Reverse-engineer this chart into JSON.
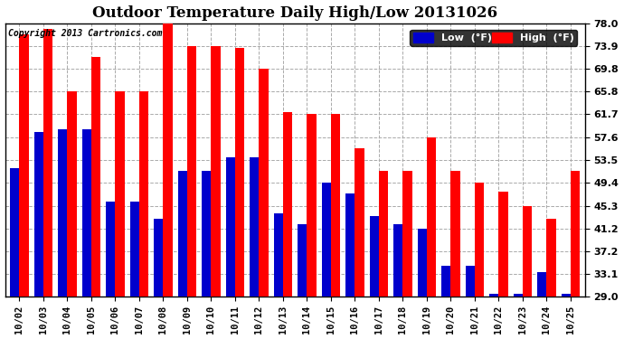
{
  "title": "Outdoor Temperature Daily High/Low 20131026",
  "copyright": "Copyright 2013 Cartronics.com",
  "categories": [
    "10/02",
    "10/03",
    "10/04",
    "10/05",
    "10/06",
    "10/07",
    "10/08",
    "10/09",
    "10/10",
    "10/11",
    "10/12",
    "10/13",
    "10/14",
    "10/15",
    "10/16",
    "10/17",
    "10/18",
    "10/19",
    "10/20",
    "10/21",
    "10/22",
    "10/23",
    "10/24",
    "10/25"
  ],
  "high": [
    76.0,
    77.0,
    65.8,
    72.0,
    65.8,
    65.8,
    78.0,
    73.9,
    73.9,
    73.5,
    69.8,
    62.0,
    61.7,
    61.7,
    55.6,
    51.5,
    51.5,
    57.6,
    51.5,
    49.4,
    47.8,
    45.3,
    43.0,
    51.5
  ],
  "low": [
    52.0,
    58.5,
    59.0,
    59.0,
    46.0,
    46.0,
    43.0,
    51.5,
    51.5,
    54.0,
    54.0,
    44.0,
    42.0,
    49.4,
    47.5,
    43.5,
    42.0,
    41.2,
    34.5,
    34.5,
    29.5,
    29.5,
    33.5,
    29.5
  ],
  "high_color": "#ff0000",
  "low_color": "#0000cc",
  "bg_color": "#ffffff",
  "plot_bg_color": "#ffffff",
  "yticks": [
    29.0,
    33.1,
    37.2,
    41.2,
    45.3,
    49.4,
    53.5,
    57.6,
    61.7,
    65.8,
    69.8,
    73.9,
    78.0
  ],
  "ymin": 29.0,
  "ymax": 78.0,
  "legend_low_label": "Low  (°F)",
  "legend_high_label": "High  (°F)",
  "grid_color": "#aaaaaa",
  "title_fontsize": 12,
  "bar_width": 0.38
}
